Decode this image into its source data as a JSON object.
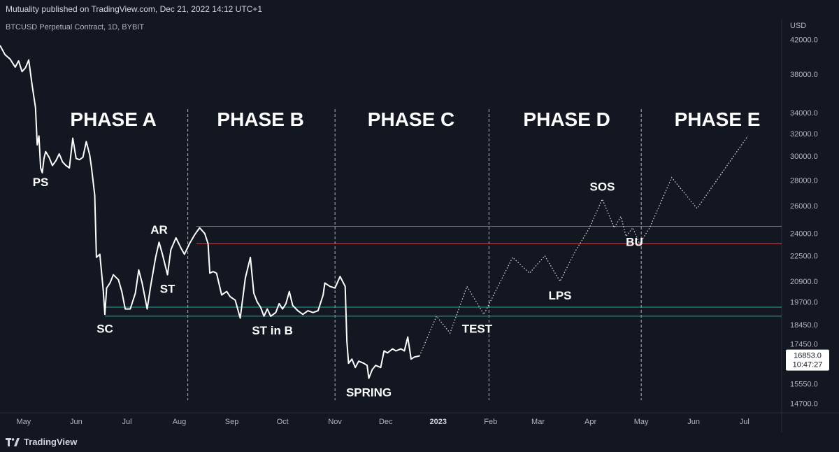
{
  "header": {
    "published": "Mutuality published on TradingView.com, Dec 21, 2022 14:12 UTC+1"
  },
  "footer": {
    "brand": "TradingView"
  },
  "colors": {
    "background": "#131722",
    "price": "#ffffff",
    "projection": "#d1d4dc",
    "resistance": "#c0504d",
    "support": "#26a69a",
    "separator": "#b2b5be",
    "price_tag_bg": "#ffffff"
  },
  "chart_data": {
    "type": "line",
    "symbol": "BTCUSD Perpetual Contract, 1D, BYBIT",
    "currency": "USD",
    "y_scale": "log",
    "ylim": [
      14300,
      44500
    ],
    "xlim": [
      "2022-04-17",
      "2023-07-23"
    ],
    "y_ticks": [
      42000.0,
      38000.0,
      34000.0,
      32000.0,
      30000.0,
      28000.0,
      26000.0,
      24000.0,
      22500.0,
      20900.0,
      19700.0,
      18450.0,
      17450.0,
      15550.0,
      14700.0
    ],
    "x_ticks": [
      {
        "date": "2022-05-01",
        "label": "May",
        "bold": false
      },
      {
        "date": "2022-06-01",
        "label": "Jun",
        "bold": false
      },
      {
        "date": "2022-07-01",
        "label": "Jul",
        "bold": false
      },
      {
        "date": "2022-08-01",
        "label": "Aug",
        "bold": false
      },
      {
        "date": "2022-09-01",
        "label": "Sep",
        "bold": false
      },
      {
        "date": "2022-10-01",
        "label": "Oct",
        "bold": false
      },
      {
        "date": "2022-11-01",
        "label": "Nov",
        "bold": false
      },
      {
        "date": "2022-12-01",
        "label": "Dec",
        "bold": false
      },
      {
        "date": "2023-01-01",
        "label": "2023",
        "bold": true
      },
      {
        "date": "2023-02-01",
        "label": "Feb",
        "bold": false
      },
      {
        "date": "2023-03-01",
        "label": "Mar",
        "bold": false
      },
      {
        "date": "2023-04-01",
        "label": "Apr",
        "bold": false
      },
      {
        "date": "2023-05-01",
        "label": "May",
        "bold": false
      },
      {
        "date": "2023-06-01",
        "label": "Jun",
        "bold": false
      },
      {
        "date": "2023-07-01",
        "label": "Jul",
        "bold": false
      }
    ],
    "price_series": [
      [
        "2022-04-17",
        41300
      ],
      [
        "2022-04-20",
        40200
      ],
      [
        "2022-04-23",
        39700
      ],
      [
        "2022-04-26",
        38800
      ],
      [
        "2022-04-28",
        39500
      ],
      [
        "2022-04-30",
        38300
      ],
      [
        "2022-05-02",
        38700
      ],
      [
        "2022-05-04",
        39600
      ],
      [
        "2022-05-06",
        36800
      ],
      [
        "2022-05-08",
        34500
      ],
      [
        "2022-05-09",
        31000
      ],
      [
        "2022-05-10",
        31800
      ],
      [
        "2022-05-11",
        29000
      ],
      [
        "2022-05-12",
        28600
      ],
      [
        "2022-05-13",
        29800
      ],
      [
        "2022-05-14",
        30400
      ],
      [
        "2022-05-16",
        29900
      ],
      [
        "2022-05-18",
        29200
      ],
      [
        "2022-05-20",
        29600
      ],
      [
        "2022-05-22",
        30200
      ],
      [
        "2022-05-24",
        29500
      ],
      [
        "2022-05-26",
        29200
      ],
      [
        "2022-05-28",
        29000
      ],
      [
        "2022-05-30",
        31600
      ],
      [
        "2022-06-01",
        29800
      ],
      [
        "2022-06-03",
        29700
      ],
      [
        "2022-06-05",
        29900
      ],
      [
        "2022-06-07",
        31300
      ],
      [
        "2022-06-09",
        30100
      ],
      [
        "2022-06-10",
        29100
      ],
      [
        "2022-06-12",
        26800
      ],
      [
        "2022-06-13",
        22400
      ],
      [
        "2022-06-15",
        22600
      ],
      [
        "2022-06-17",
        20400
      ],
      [
        "2022-06-18",
        19000
      ],
      [
        "2022-06-19",
        20500
      ],
      [
        "2022-06-21",
        20800
      ],
      [
        "2022-06-23",
        21300
      ],
      [
        "2022-06-26",
        21000
      ],
      [
        "2022-06-28",
        20300
      ],
      [
        "2022-06-30",
        19300
      ],
      [
        "2022-07-03",
        19300
      ],
      [
        "2022-07-06",
        20200
      ],
      [
        "2022-07-08",
        21600
      ],
      [
        "2022-07-10",
        20800
      ],
      [
        "2022-07-13",
        19300
      ],
      [
        "2022-07-15",
        20600
      ],
      [
        "2022-07-18",
        22400
      ],
      [
        "2022-07-20",
        23400
      ],
      [
        "2022-07-22",
        22600
      ],
      [
        "2022-07-25",
        21300
      ],
      [
        "2022-07-27",
        22900
      ],
      [
        "2022-07-30",
        23700
      ],
      [
        "2022-08-02",
        23000
      ],
      [
        "2022-08-04",
        22600
      ],
      [
        "2022-08-07",
        23300
      ],
      [
        "2022-08-10",
        23900
      ],
      [
        "2022-08-13",
        24400
      ],
      [
        "2022-08-16",
        24000
      ],
      [
        "2022-08-18",
        23300
      ],
      [
        "2022-08-19",
        21400
      ],
      [
        "2022-08-21",
        21500
      ],
      [
        "2022-08-23",
        21400
      ],
      [
        "2022-08-26",
        20100
      ],
      [
        "2022-08-29",
        20300
      ],
      [
        "2022-08-31",
        20000
      ],
      [
        "2022-09-03",
        19800
      ],
      [
        "2022-09-06",
        18800
      ],
      [
        "2022-09-09",
        21100
      ],
      [
        "2022-09-12",
        22400
      ],
      [
        "2022-09-14",
        20200
      ],
      [
        "2022-09-16",
        19700
      ],
      [
        "2022-09-18",
        19400
      ],
      [
        "2022-09-20",
        18900
      ],
      [
        "2022-09-22",
        19300
      ],
      [
        "2022-09-24",
        18900
      ],
      [
        "2022-09-27",
        19100
      ],
      [
        "2022-09-29",
        19600
      ],
      [
        "2022-10-01",
        19300
      ],
      [
        "2022-10-03",
        19600
      ],
      [
        "2022-10-05",
        20300
      ],
      [
        "2022-10-07",
        19500
      ],
      [
        "2022-10-10",
        19200
      ],
      [
        "2022-10-13",
        19000
      ],
      [
        "2022-10-16",
        19200
      ],
      [
        "2022-10-19",
        19100
      ],
      [
        "2022-10-22",
        19200
      ],
      [
        "2022-10-25",
        20100
      ],
      [
        "2022-10-26",
        20800
      ],
      [
        "2022-10-29",
        20600
      ],
      [
        "2022-11-01",
        20500
      ],
      [
        "2022-11-04",
        21200
      ],
      [
        "2022-11-05",
        21000
      ],
      [
        "2022-11-07",
        20600
      ],
      [
        "2022-11-08",
        17600
      ],
      [
        "2022-11-09",
        16500
      ],
      [
        "2022-11-11",
        16700
      ],
      [
        "2022-11-13",
        16300
      ],
      [
        "2022-11-15",
        16600
      ],
      [
        "2022-11-18",
        16500
      ],
      [
        "2022-11-20",
        16400
      ],
      [
        "2022-11-21",
        15800
      ],
      [
        "2022-11-23",
        16200
      ],
      [
        "2022-11-25",
        16400
      ],
      [
        "2022-11-28",
        16300
      ],
      [
        "2022-11-30",
        17100
      ],
      [
        "2022-12-02",
        17000
      ],
      [
        "2022-12-05",
        17200
      ],
      [
        "2022-12-07",
        17100
      ],
      [
        "2022-12-10",
        17200
      ],
      [
        "2022-12-12",
        17100
      ],
      [
        "2022-12-14",
        17800
      ],
      [
        "2022-12-16",
        16700
      ],
      [
        "2022-12-18",
        16800
      ],
      [
        "2022-12-21",
        16853
      ]
    ],
    "projection_series": [
      [
        "2022-12-21",
        16853
      ],
      [
        "2022-12-31",
        18900
      ],
      [
        "2023-01-08",
        18000
      ],
      [
        "2023-01-18",
        20600
      ],
      [
        "2023-01-28",
        19000
      ],
      [
        "2023-02-14",
        22400
      ],
      [
        "2023-02-24",
        21400
      ],
      [
        "2023-03-05",
        22500
      ],
      [
        "2023-03-14",
        20900
      ],
      [
        "2023-03-23",
        22800
      ],
      [
        "2023-03-31",
        24300
      ],
      [
        "2023-04-08",
        26500
      ],
      [
        "2023-04-15",
        24400
      ],
      [
        "2023-04-19",
        25200
      ],
      [
        "2023-04-22",
        23800
      ],
      [
        "2023-04-26",
        24400
      ],
      [
        "2023-04-30",
        23300
      ],
      [
        "2023-05-06",
        24400
      ],
      [
        "2023-05-19",
        28200
      ],
      [
        "2023-06-03",
        25800
      ],
      [
        "2023-07-03",
        31800
      ]
    ],
    "horizontal_levels": [
      {
        "name": "resistance-upper",
        "value": 24500,
        "color": "#c0504d",
        "from": "2022-08-11"
      },
      {
        "name": "resistance-lower",
        "value": 23300,
        "color": "#c0504d",
        "from": "2022-08-11"
      },
      {
        "name": "support-upper",
        "value": 19400,
        "color": "#26a69a",
        "from": "2022-06-18"
      },
      {
        "name": "support-lower",
        "value": 18900,
        "color": "#26a69a",
        "from": "2022-06-18"
      }
    ],
    "phase_separators": [
      "2022-08-06",
      "2022-11-01",
      "2023-01-31",
      "2023-05-01"
    ],
    "phases": [
      {
        "label": "PHASE A",
        "center": "2022-06-23"
      },
      {
        "label": "PHASE B",
        "center": "2022-09-18"
      },
      {
        "label": "PHASE C",
        "center": "2022-12-16"
      },
      {
        "label": "PHASE D",
        "center": "2023-03-18"
      },
      {
        "label": "PHASE E",
        "center": "2023-06-15"
      }
    ],
    "annotations": [
      {
        "label": "PS",
        "date": "2022-05-11",
        "below": true
      },
      {
        "label": "SC",
        "date": "2022-06-18",
        "below": true
      },
      {
        "label": "AR",
        "date": "2022-07-20",
        "below": false
      },
      {
        "label": "ST",
        "date": "2022-07-25",
        "below": true
      },
      {
        "label": "ST in B",
        "date": "2022-09-25",
        "below": true
      },
      {
        "label": "SPRING",
        "date": "2022-11-21",
        "below": true
      },
      {
        "label": "TEST",
        "date": "2023-01-24",
        "below": true
      },
      {
        "label": "LPS",
        "date": "2023-03-14",
        "below": true
      },
      {
        "label": "SOS",
        "date": "2023-04-08",
        "below": false
      },
      {
        "label": "BU",
        "date": "2023-04-27",
        "below": true
      }
    ],
    "last_price": {
      "value": "16853.0",
      "countdown": "10:47:27"
    }
  }
}
